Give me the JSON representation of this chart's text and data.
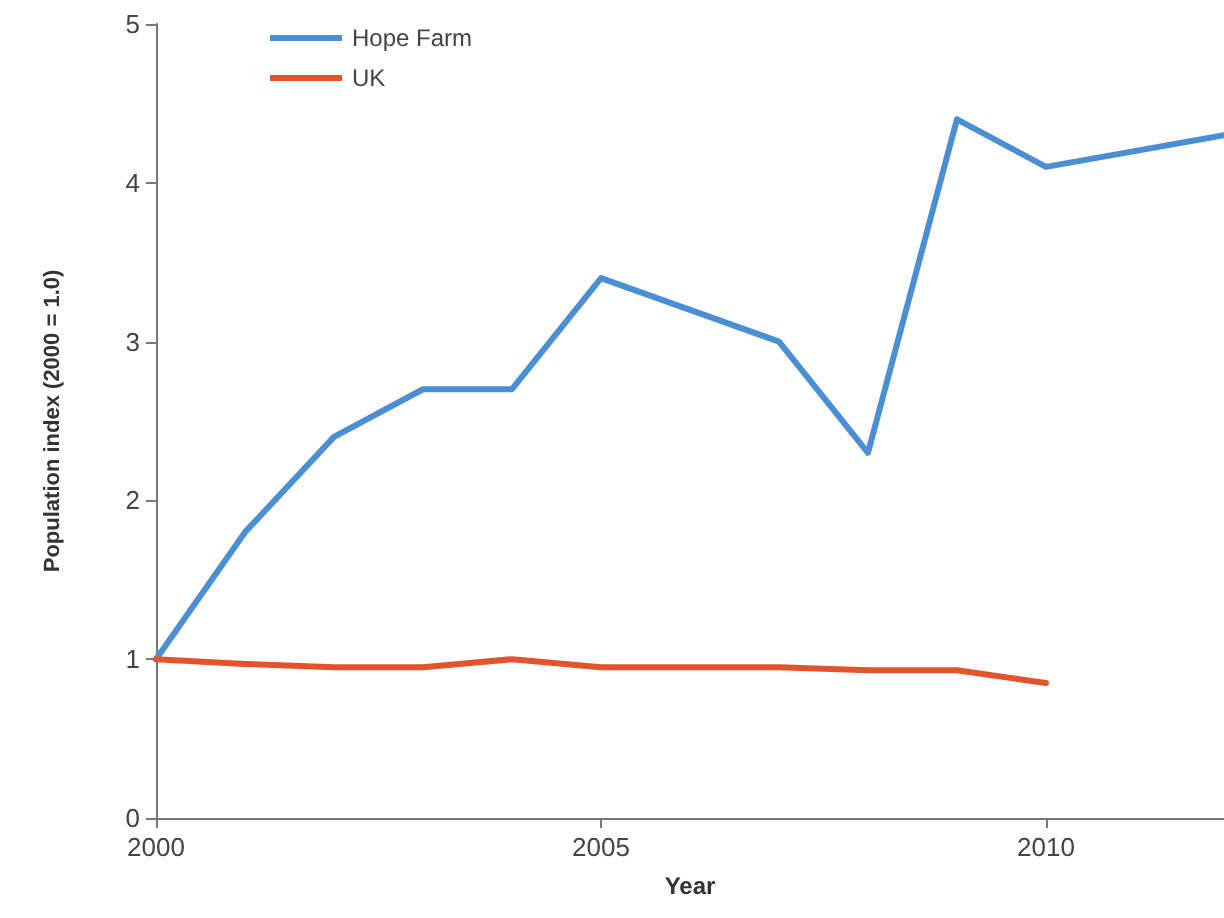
{
  "chart_data": {
    "type": "line",
    "xlabel": "Year",
    "ylabel": "Population index (2000 = 1.0)",
    "xlim": [
      2000,
      2012
    ],
    "xticks": [
      2000,
      2005,
      2010
    ],
    "ylim": [
      0,
      5
    ],
    "yticks": [
      0,
      1,
      2,
      3,
      4,
      5
    ],
    "legend": "top left",
    "grid": false,
    "marker": "none",
    "series": [
      {
        "name": "Hope Farm",
        "color": "#4a8fd4",
        "x": [
          2000,
          2001,
          2002,
          2003,
          2004,
          2005,
          2007,
          2008,
          2009,
          2010,
          2012
        ],
        "values": [
          1,
          1.8,
          2.4,
          2.7,
          2.7,
          3.4,
          3.0,
          2.3,
          4.4,
          4.1,
          4.3
        ]
      },
      {
        "name": "UK",
        "color": "#e5532d",
        "x": [
          2000,
          2001,
          2002,
          2003,
          2004,
          2005,
          2006,
          2007,
          2008,
          2009,
          2010
        ],
        "values": [
          1,
          0.97,
          0.95,
          0.95,
          1.0,
          0.95,
          0.95,
          0.95,
          0.93,
          0.93,
          0.85
        ]
      }
    ]
  }
}
